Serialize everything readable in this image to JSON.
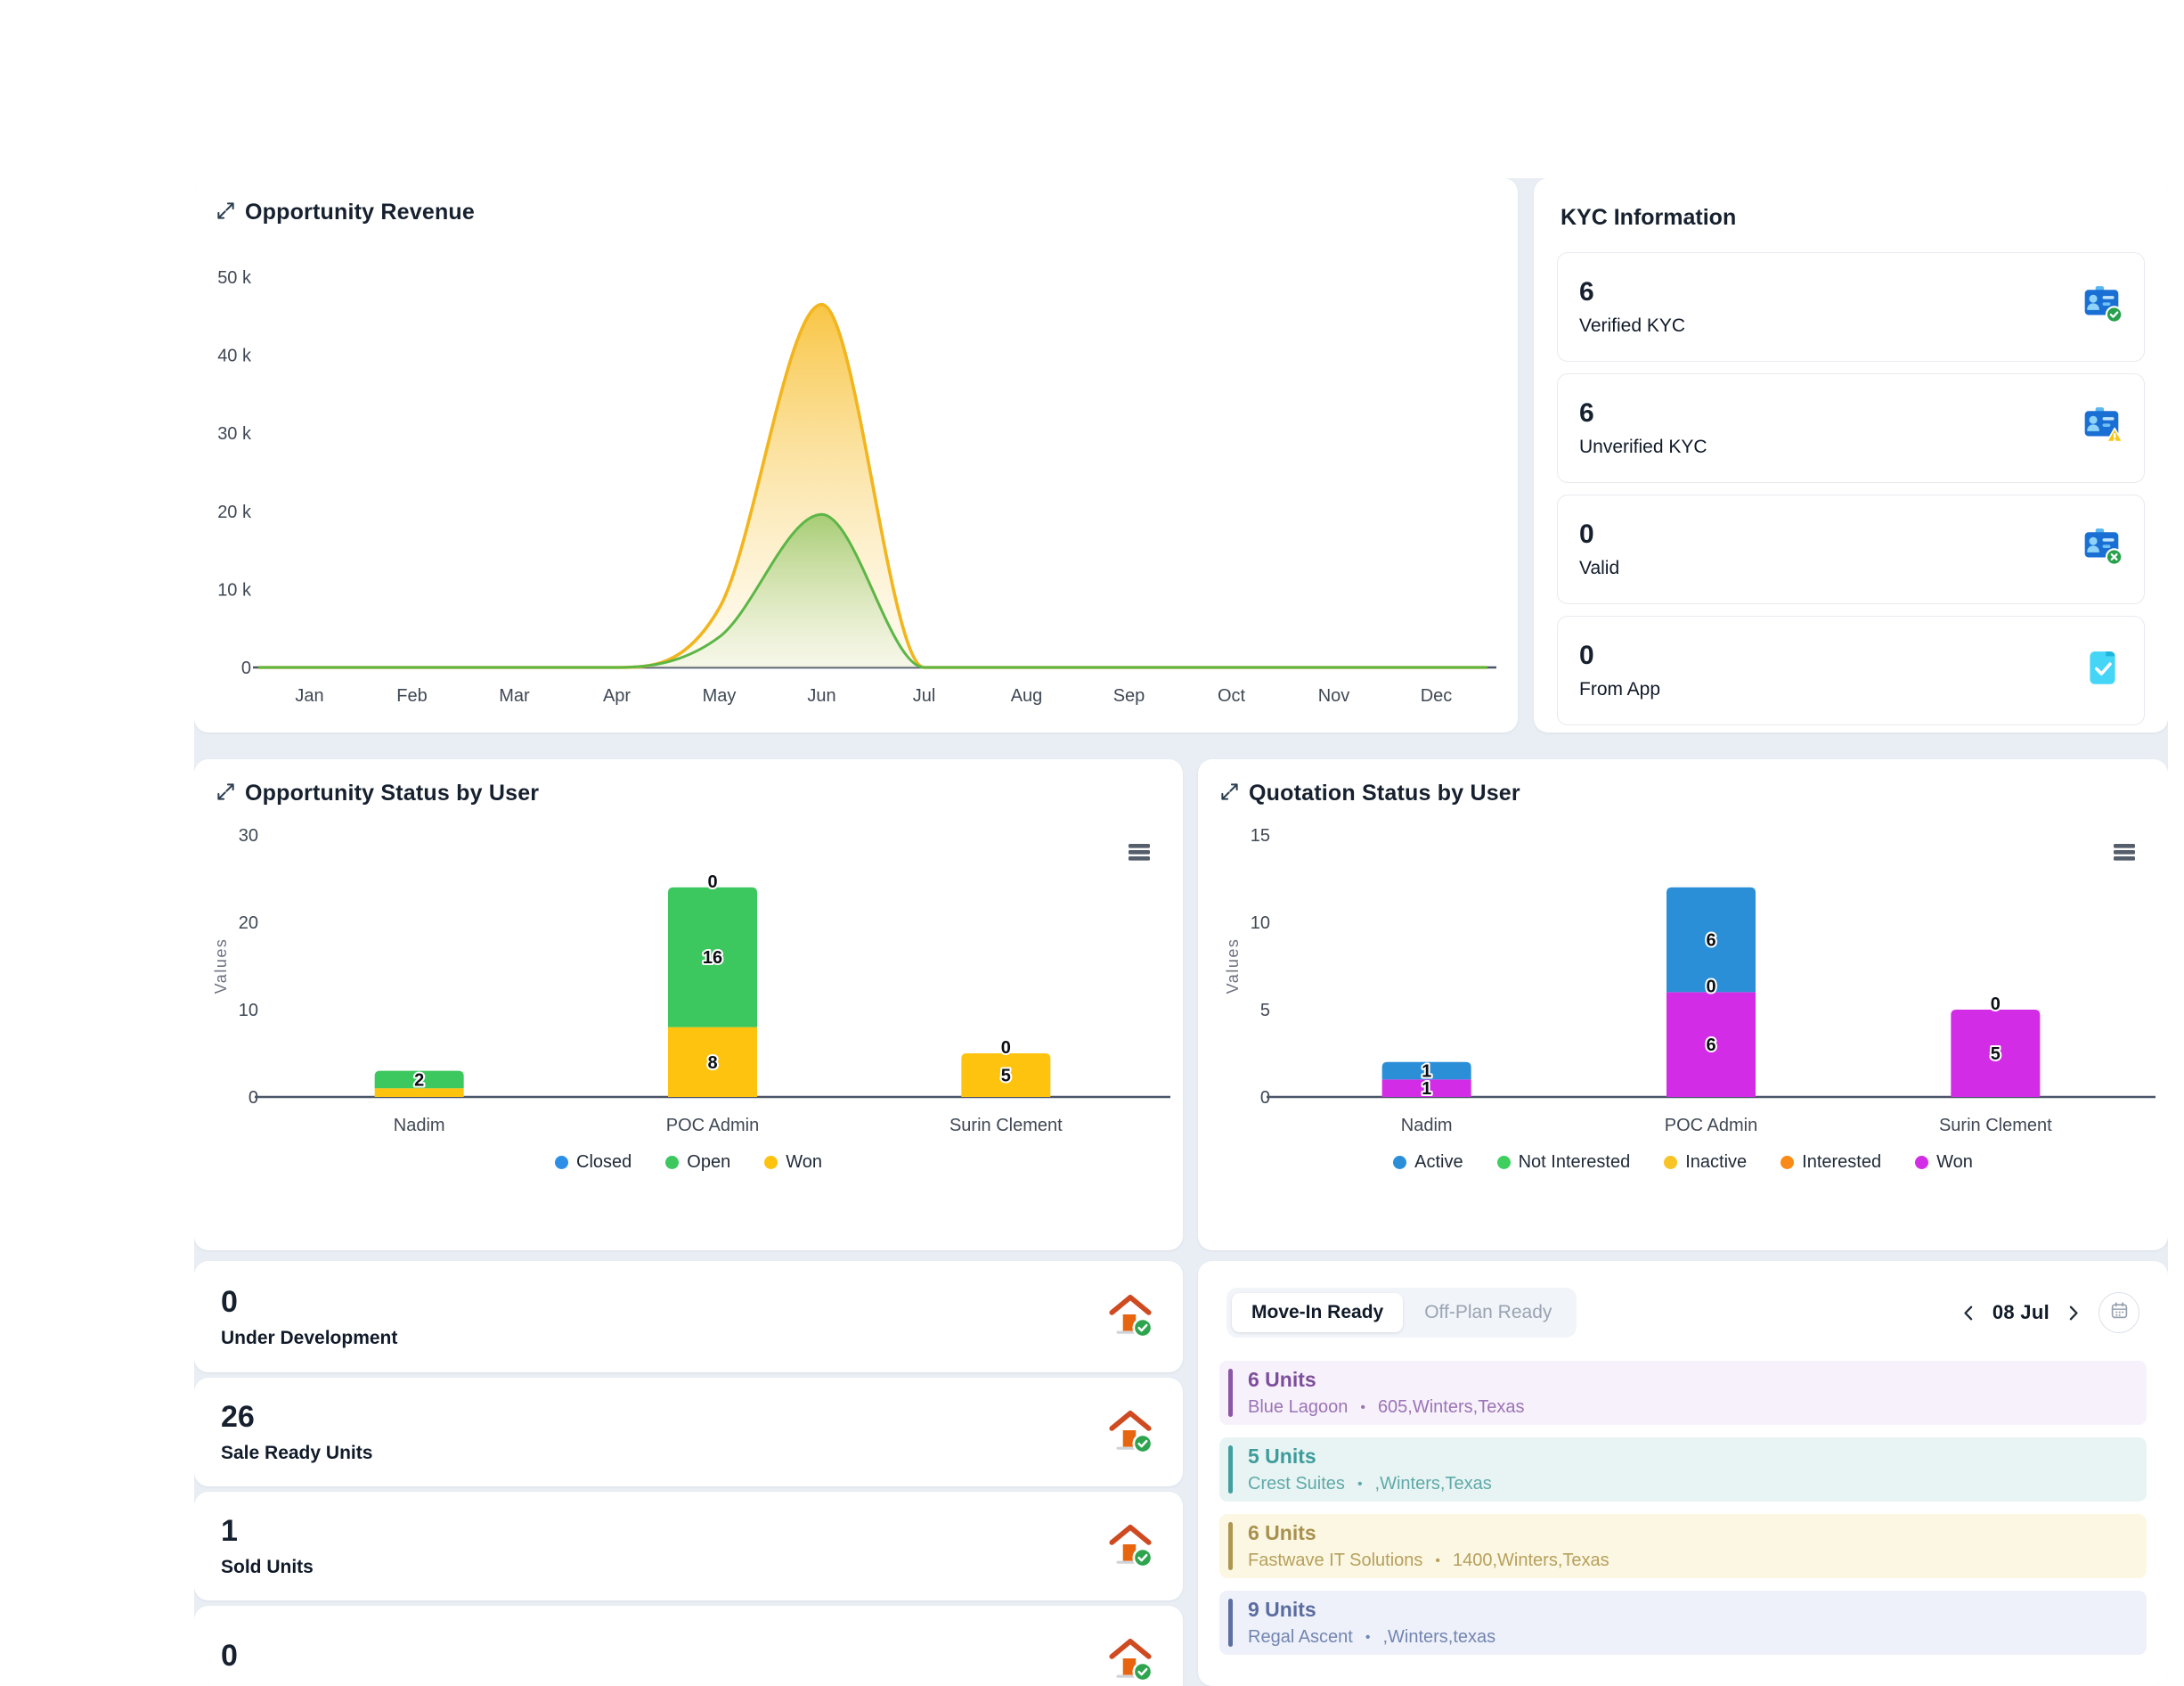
{
  "revenue": {
    "title": "Opportunity Revenue"
  },
  "kyc": {
    "title": "KYC Information",
    "cards": [
      {
        "value": "6",
        "label": "Verified KYC",
        "icon": "id-card-check-icon"
      },
      {
        "value": "6",
        "label": "Unverified KYC",
        "icon": "id-card-warning-icon"
      },
      {
        "value": "0",
        "label": "Valid",
        "icon": "id-card-x-icon"
      },
      {
        "value": "0",
        "label": "From App",
        "icon": "document-check-icon"
      }
    ]
  },
  "opportunity_status": {
    "title": "Opportunity Status by User"
  },
  "quotation_status": {
    "title": "Quotation Status by User"
  },
  "stats": [
    {
      "value": "0",
      "label": "Under Development",
      "icon": "house-check-icon"
    },
    {
      "value": "26",
      "label": "Sale Ready Units",
      "icon": "house-check-icon"
    },
    {
      "value": "1",
      "label": "Sold Units",
      "icon": "house-check-icon"
    },
    {
      "value": "0",
      "label": "",
      "icon": "house-check-icon"
    }
  ],
  "schedule": {
    "tabs": [
      {
        "label": "Move-In Ready",
        "active": true
      },
      {
        "label": "Off-Plan Ready",
        "active": false
      }
    ],
    "date_label": "08 Jul",
    "bullet": "•",
    "items": [
      {
        "units": "6 Units",
        "name": "Blue Lagoon",
        "address": "605,Winters,Texas",
        "theme": "purple"
      },
      {
        "units": "5 Units",
        "name": "Crest Suites",
        "address": ",Winters,Texas",
        "theme": "teal"
      },
      {
        "units": "6 Units",
        "name": "Fastwave IT Solutions",
        "address": "1400,Winters,Texas",
        "theme": "gold"
      },
      {
        "units": "9 Units",
        "name": "Regal Ascent",
        "address": ",Winters,texas",
        "theme": "slate"
      }
    ],
    "themes": {
      "purple": {
        "bg": "#f7f1fb",
        "bar": "#8a56a5",
        "title": "#7c4e9b",
        "sub": "#9b74b5"
      },
      "teal": {
        "bg": "#e7f4f3",
        "bar": "#41a09e",
        "title": "#3d9c9b",
        "sub": "#5fa9a8"
      },
      "gold": {
        "bg": "#fcf7e3",
        "bar": "#ad9752",
        "title": "#a8914e",
        "sub": "#b6a05c"
      },
      "slate": {
        "bg": "#eef1f9",
        "bar": "#5e70a3",
        "title": "#5a6ca0",
        "sub": "#7285b2"
      }
    }
  },
  "chart_data": [
    {
      "id": "revenue",
      "type": "area",
      "title": "Opportunity Revenue",
      "categories": [
        "Jan",
        "Feb",
        "Mar",
        "Apr",
        "May",
        "Jun",
        "Jul",
        "Aug",
        "Sep",
        "Oct",
        "Nov",
        "Dec"
      ],
      "series": [
        {
          "name": "yellow",
          "color": "#f2b51d",
          "fill_top": "#f8c23a",
          "fill_bottom": "#fdf4d8",
          "values": [
            0,
            0,
            0,
            0,
            7600,
            46500,
            0,
            0,
            0,
            0,
            0,
            0
          ]
        },
        {
          "name": "green",
          "color": "#5cb646",
          "fill_top": "#9cc96c",
          "fill_bottom": "#e7f0d8",
          "values": [
            0,
            0,
            0,
            0,
            3900,
            19600,
            0,
            0,
            0,
            0,
            0,
            0
          ]
        }
      ],
      "ylim": [
        0,
        50000
      ],
      "yticks": [
        {
          "v": 0,
          "label": "0"
        },
        {
          "v": 10000,
          "label": "10 k"
        },
        {
          "v": 20000,
          "label": "20 k"
        },
        {
          "v": 30000,
          "label": "30 k"
        },
        {
          "v": 40000,
          "label": "40 k"
        },
        {
          "v": 50000,
          "label": "50 k"
        }
      ],
      "legend": false,
      "grid": false
    },
    {
      "id": "opportunity_status",
      "type": "stacked-bar",
      "title": "Opportunity Status by User",
      "ylabel": "Values",
      "categories": [
        "Nadim",
        "POC Admin",
        "Surin Clement"
      ],
      "ylim": [
        0,
        30
      ],
      "yticks": [
        0,
        10,
        20,
        30
      ],
      "series": [
        {
          "name": "Closed",
          "color": "#2b8fe8",
          "values": [
            0,
            0,
            0
          ]
        },
        {
          "name": "Open",
          "color": "#3dc85f",
          "values": [
            2,
            16,
            0
          ]
        },
        {
          "name": "Won",
          "color": "#fec30f",
          "values": [
            1,
            8,
            5
          ]
        }
      ],
      "stack_order": [
        "Won",
        "Open",
        "Closed"
      ],
      "bar_labels": [
        {
          "cat": 0,
          "y": 2,
          "text": "2"
        },
        {
          "cat": 1,
          "y": 24.7,
          "text": "0"
        },
        {
          "cat": 1,
          "y": 16,
          "text": "16"
        },
        {
          "cat": 1,
          "y": 4,
          "text": "8"
        },
        {
          "cat": 2,
          "y": 5.7,
          "text": "0"
        },
        {
          "cat": 2,
          "y": 2.5,
          "text": "5"
        }
      ],
      "legend": true
    },
    {
      "id": "quotation_status",
      "type": "stacked-bar",
      "title": "Quotation Status by User",
      "ylabel": "Values",
      "categories": [
        "Nadim",
        "POC Admin",
        "Surin Clement"
      ],
      "ylim": [
        0,
        15
      ],
      "yticks": [
        0,
        5,
        10,
        15
      ],
      "series": [
        {
          "name": "Active",
          "color": "#2b8fd8",
          "values": [
            1,
            6,
            0
          ]
        },
        {
          "name": "Not Interested",
          "color": "#3ecf5e",
          "values": [
            0,
            0,
            0
          ]
        },
        {
          "name": "Inactive",
          "color": "#f7c325",
          "values": [
            0,
            0,
            0
          ]
        },
        {
          "name": "Interested",
          "color": "#f98a17",
          "values": [
            0,
            0,
            0
          ]
        },
        {
          "name": "Won",
          "color": "#d32ce6",
          "values": [
            1,
            6,
            5
          ]
        }
      ],
      "stack_order": [
        "Won",
        "Interested",
        "Inactive",
        "Not Interested",
        "Active"
      ],
      "bar_labels": [
        {
          "cat": 0,
          "y": 1.5,
          "text": "1"
        },
        {
          "cat": 0,
          "y": 0.5,
          "text": "1"
        },
        {
          "cat": 1,
          "y": 9,
          "text": "6"
        },
        {
          "cat": 1,
          "y": 6.35,
          "text": "0"
        },
        {
          "cat": 1,
          "y": 3,
          "text": "6"
        },
        {
          "cat": 2,
          "y": 5.35,
          "text": "0"
        },
        {
          "cat": 2,
          "y": 2.5,
          "text": "5"
        }
      ],
      "legend": true
    }
  ]
}
